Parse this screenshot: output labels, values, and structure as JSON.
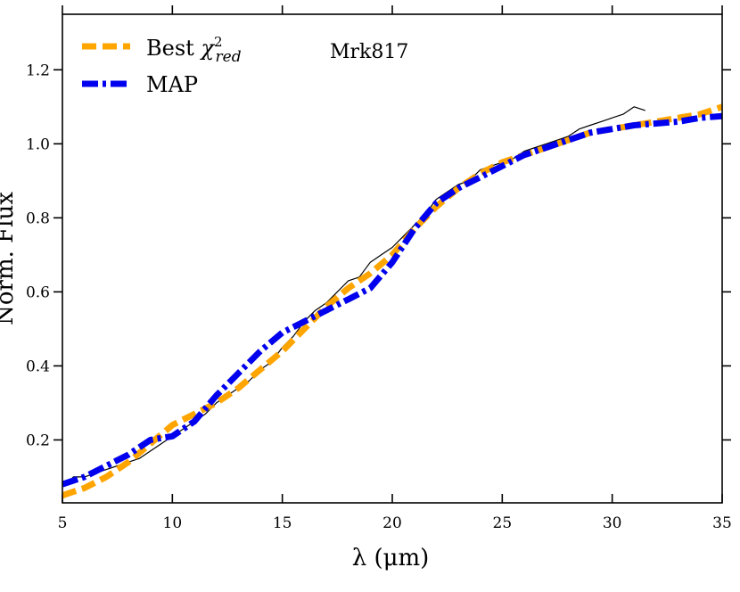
{
  "chart_data": {
    "type": "line",
    "xlabel": "λ (μm)",
    "ylabel": "Norm. Flux",
    "annotation": "Mrk817",
    "xlim": [
      5,
      35
    ],
    "ylim": [
      0.03,
      1.35
    ],
    "xticks": [
      "5",
      "10",
      "15",
      "20",
      "25",
      "30",
      "35"
    ],
    "yticks": [
      "0.2",
      "0.4",
      "0.6",
      "0.8",
      "1.0",
      "1.2"
    ],
    "legend_position": "top-left",
    "observed": {
      "color": "#000000",
      "x": [
        5.2,
        5.5,
        6.0,
        6.5,
        7.0,
        7.5,
        8.0,
        8.5,
        9.0,
        9.5,
        10.0,
        10.5,
        11.0,
        11.5,
        12.0,
        12.5,
        13.0,
        13.5,
        14.0,
        14.5,
        15.0,
        15.5,
        16.0,
        16.5,
        17.0,
        17.5,
        18.0,
        18.5,
        19.0,
        19.5,
        20.0,
        20.5,
        21.0,
        21.5,
        22.0,
        22.5,
        23.0,
        23.5,
        24.0,
        24.5,
        25.0,
        25.5,
        26.0,
        26.5,
        27.0,
        27.5,
        28.0,
        28.5,
        29.0,
        29.5,
        30.0,
        30.5,
        31.0,
        31.5
      ],
      "y": [
        0.08,
        0.1,
        0.1,
        0.11,
        0.12,
        0.13,
        0.14,
        0.15,
        0.17,
        0.19,
        0.21,
        0.23,
        0.25,
        0.27,
        0.3,
        0.32,
        0.34,
        0.36,
        0.39,
        0.41,
        0.45,
        0.48,
        0.52,
        0.55,
        0.57,
        0.6,
        0.63,
        0.64,
        0.68,
        0.7,
        0.72,
        0.75,
        0.78,
        0.81,
        0.85,
        0.87,
        0.89,
        0.9,
        0.93,
        0.94,
        0.95,
        0.96,
        0.98,
        0.99,
        1.0,
        1.01,
        1.02,
        1.04,
        1.05,
        1.06,
        1.07,
        1.08,
        1.1,
        1.09
      ]
    },
    "series": [
      {
        "name": "Best χ²red",
        "color": "#FFA500",
        "x": [
          5,
          6,
          7,
          8,
          9,
          10,
          11,
          12,
          13,
          14,
          15,
          16,
          17,
          18,
          19,
          20,
          21,
          22,
          23,
          24,
          25,
          26,
          27,
          28,
          29,
          30,
          31,
          32,
          33,
          34,
          35
        ],
        "y": [
          0.05,
          0.07,
          0.1,
          0.14,
          0.19,
          0.24,
          0.27,
          0.3,
          0.34,
          0.39,
          0.44,
          0.5,
          0.56,
          0.61,
          0.65,
          0.7,
          0.77,
          0.83,
          0.88,
          0.92,
          0.95,
          0.97,
          0.99,
          1.01,
          1.03,
          1.04,
          1.05,
          1.06,
          1.07,
          1.08,
          1.1
        ]
      },
      {
        "name": "MAP",
        "color": "#0000EE",
        "x": [
          5,
          6,
          7,
          8,
          9,
          10,
          11,
          12,
          13,
          14,
          15,
          16,
          17,
          18,
          19,
          20,
          21,
          22,
          23,
          24,
          25,
          26,
          27,
          28,
          29,
          30,
          31,
          32,
          33,
          34,
          35
        ],
        "y": [
          0.08,
          0.1,
          0.13,
          0.16,
          0.2,
          0.21,
          0.25,
          0.32,
          0.38,
          0.44,
          0.49,
          0.52,
          0.55,
          0.58,
          0.61,
          0.68,
          0.77,
          0.84,
          0.88,
          0.91,
          0.94,
          0.97,
          0.99,
          1.01,
          1.03,
          1.04,
          1.05,
          1.055,
          1.06,
          1.07,
          1.075
        ]
      }
    ]
  }
}
